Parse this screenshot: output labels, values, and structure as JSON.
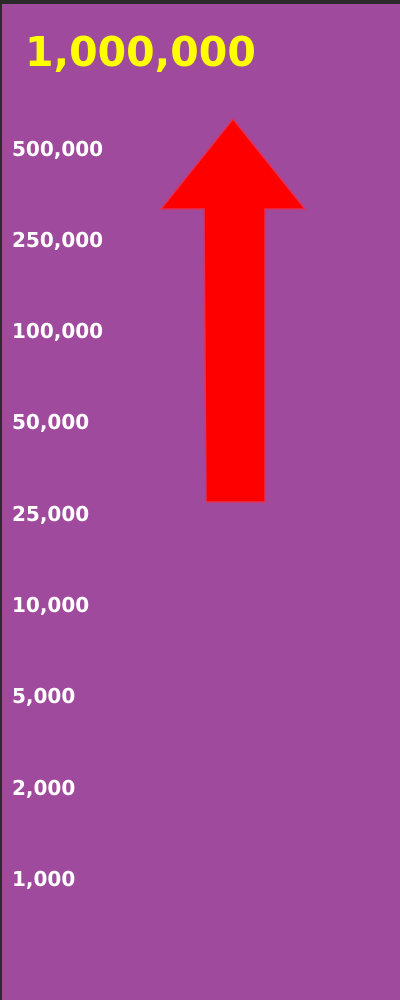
{
  "top_prize": {
    "amount": "1,000,000",
    "color": "#FFFF00"
  },
  "ladder": {
    "amounts": [
      "500,000",
      "250,000",
      "100,000",
      "50,000",
      "25,000",
      "10,000",
      "5,000",
      "2,000",
      "1,000"
    ],
    "text_color": "#FFFFFF"
  },
  "arrow": {
    "icon": "up-arrow-icon",
    "direction": "up",
    "color": "#FF0000"
  },
  "background_color": "#A04A9E"
}
